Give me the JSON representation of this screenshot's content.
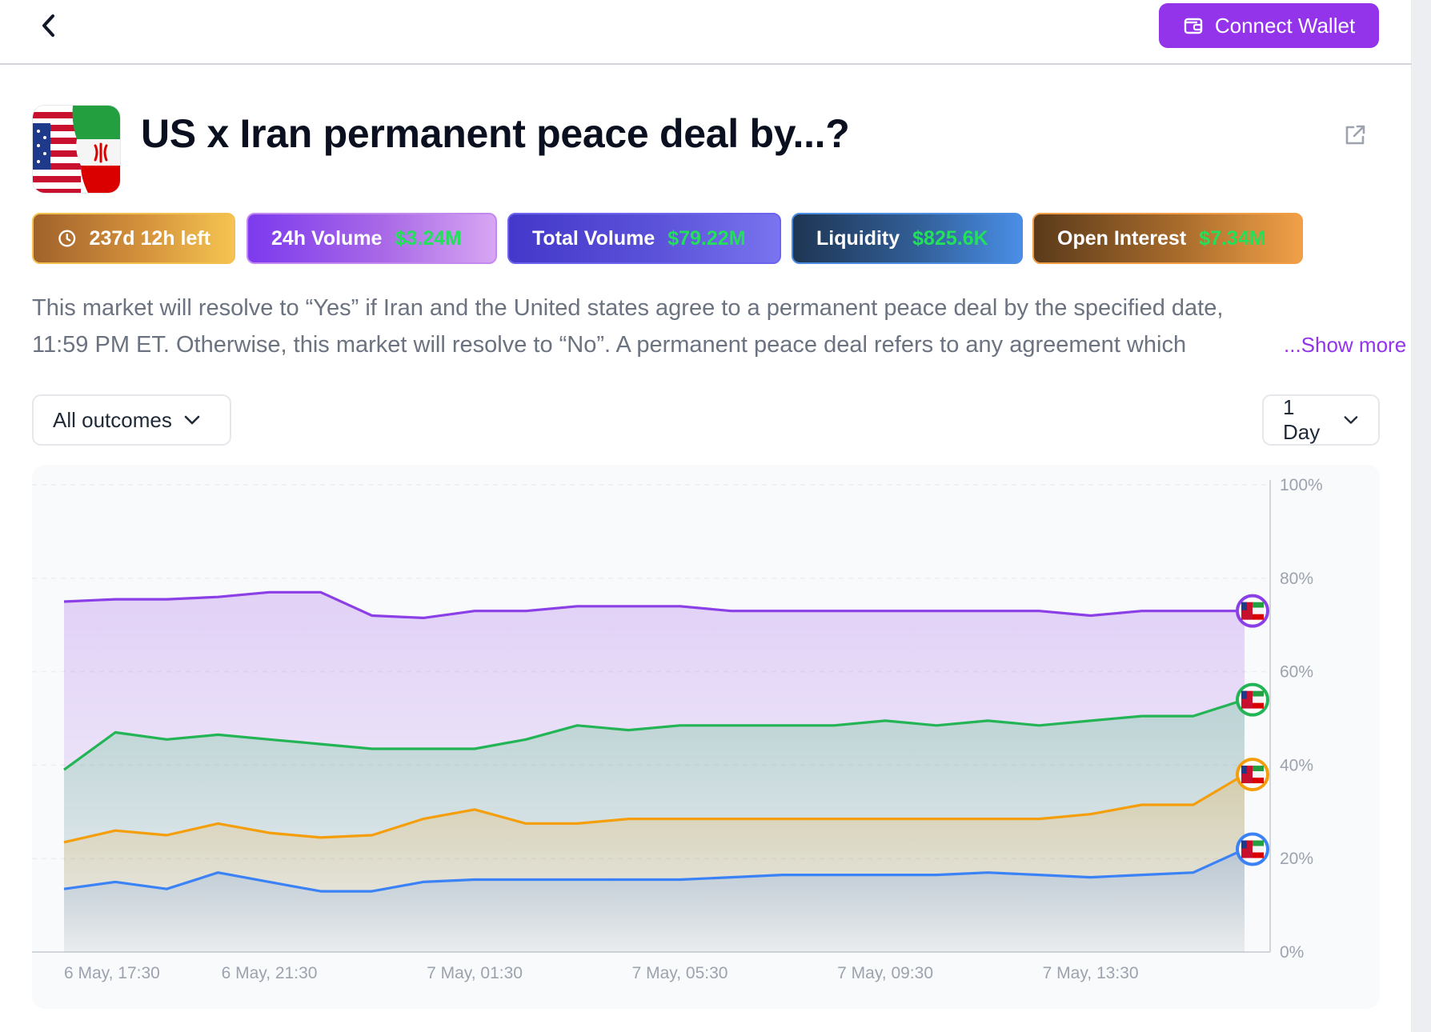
{
  "topbar": {
    "back_icon": "chevron-left-icon",
    "connect_label": "Connect Wallet",
    "connect_icon": "wallet-icon",
    "accent": "#9333ea"
  },
  "market": {
    "title": "US x Iran permanent peace deal by...?",
    "icon": "us-iran-flags-image",
    "share_icon": "external-link-icon"
  },
  "stats": {
    "time_left": "237d 12h left",
    "time_icon": "clock-icon",
    "volume_24h_label": "24h Volume",
    "volume_24h_value": "$3.24M",
    "total_volume_label": "Total Volume",
    "total_volume_value": "$79.22M",
    "liquidity_label": "Liquidity",
    "liquidity_value": "$825.6K",
    "open_interest_label": "Open Interest",
    "open_interest_value": "$7.34M",
    "value_color": "#22e05a"
  },
  "description": {
    "line1": "This market will resolve to “Yes” if Iran and the United states agree to a permanent peace deal by the specified date,",
    "line2": "11:59 PM ET. Otherwise, this market will resolve to “No”. A permanent peace deal refers to any agreement which",
    "show_more": "...Show more"
  },
  "filters": {
    "outcomes_label": "All outcomes",
    "range_label": "1 Day",
    "chevron_icon": "chevron-down-icon"
  },
  "chart_data": {
    "type": "area",
    "x": [
      "6 May, 17:30",
      "6 May, 18:30",
      "6 May, 19:30",
      "6 May, 20:30",
      "6 May, 21:30",
      "6 May, 22:30",
      "6 May, 23:30",
      "7 May, 00:30",
      "7 May, 01:30",
      "7 May, 02:30",
      "7 May, 03:30",
      "7 May, 04:30",
      "7 May, 05:30",
      "7 May, 06:30",
      "7 May, 07:30",
      "7 May, 08:30",
      "7 May, 09:30",
      "7 May, 10:30",
      "7 May, 11:30",
      "7 May, 12:30",
      "7 May, 13:30",
      "7 May, 14:30",
      "7 May, 15:30",
      "7 May, 16:30"
    ],
    "xtick_labels": [
      "6 May, 17:30",
      "6 May, 21:30",
      "7 May, 01:30",
      "7 May, 05:30",
      "7 May, 09:30",
      "7 May, 13:30"
    ],
    "ytick_labels": [
      "100%",
      "80%",
      "60%",
      "40%",
      "20%",
      "0%"
    ],
    "ylim": [
      0,
      100
    ],
    "y_unit": "%",
    "xlabel": "",
    "ylabel": "",
    "legend": "none",
    "grid": "dashed horizontal",
    "series": [
      {
        "color": "#8b3fe6",
        "marker_icon": "us-iran-flags-image",
        "values": [
          75,
          75.5,
          75.5,
          76,
          77,
          77,
          72,
          71.5,
          73,
          73,
          74,
          74,
          74,
          73,
          73,
          73,
          73,
          73,
          73,
          73,
          72,
          73,
          73,
          73
        ]
      },
      {
        "color": "#22b455",
        "marker_icon": "us-iran-flags-image",
        "values": [
          39,
          47,
          45.5,
          46.5,
          45.5,
          44.5,
          43.5,
          43.5,
          43.5,
          45.5,
          48.5,
          47.5,
          48.5,
          48.5,
          48.5,
          48.5,
          49.5,
          48.5,
          49.5,
          48.5,
          49.5,
          50.5,
          50.5,
          54
        ]
      },
      {
        "color": "#f59e0b",
        "marker_icon": "us-iran-flags-image",
        "values": [
          23.5,
          26,
          25,
          27.5,
          25.5,
          24.5,
          25,
          28.5,
          30.5,
          27.5,
          27.5,
          28.5,
          28.5,
          28.5,
          28.5,
          28.5,
          28.5,
          28.5,
          28.5,
          28.5,
          29.5,
          31.5,
          31.5,
          38
        ]
      },
      {
        "color": "#3b82f6",
        "marker_icon": "us-iran-flags-image",
        "values": [
          13.5,
          15,
          13.5,
          17,
          15,
          13,
          13,
          15,
          15.5,
          15.5,
          15.5,
          15.5,
          15.5,
          16,
          16.5,
          16.5,
          16.5,
          16.5,
          17,
          16.5,
          16,
          16.5,
          17,
          22
        ]
      }
    ]
  }
}
